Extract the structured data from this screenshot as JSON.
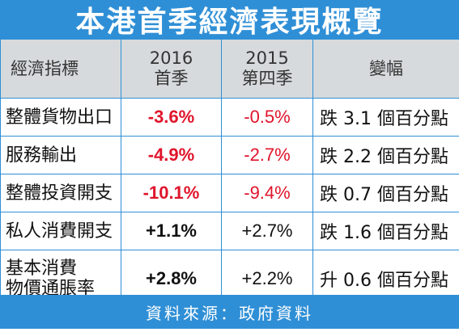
{
  "title": "本港首季經濟表現概覽",
  "columns": {
    "indicator": "經濟指標",
    "y2016_line1": "2016",
    "y2016_line2": "首季",
    "y2015_line1": "2015",
    "y2015_line2": "第四季",
    "change": "變幅"
  },
  "rows": [
    {
      "indicator": "整體貨物出口",
      "q1_2016": "-3.6%",
      "q4_2015": "-0.5%",
      "change": "跌 3.1 個百分點"
    },
    {
      "indicator": "服務輸出",
      "q1_2016": "-4.9%",
      "q4_2015": "-2.7%",
      "change": "跌 2.2 個百分點"
    },
    {
      "indicator": "整體投資開支",
      "q1_2016": "-10.1%",
      "q4_2015": "-9.4%",
      "change": "跌 0.7 個百分點"
    },
    {
      "indicator": "私人消費開支",
      "q1_2016": "+1.1%",
      "q4_2015": "+2.7%",
      "change": "跌 1.6 個百分點"
    },
    {
      "indicator_line1": "基本消費",
      "indicator_line2": "物價通脹率",
      "q1_2016": "+2.8%",
      "q4_2015": "+2.2%",
      "change": "升 0.6 個百分點"
    }
  ],
  "source": "資料來源：政府資料",
  "colors": {
    "header_band": "#2f8fd6",
    "column_header_bg": "#d6dadc",
    "negative": "#e0142b",
    "positive": "#111111"
  }
}
